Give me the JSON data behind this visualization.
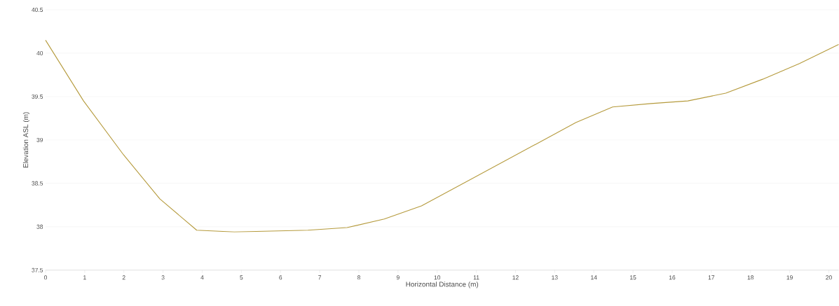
{
  "chart_data": {
    "type": "line",
    "xlabel": "Horizontal Distance (m)",
    "ylabel": "Elevation ASL (m)",
    "x": [
      0,
      0.97,
      1.99,
      2.92,
      3.86,
      4.82,
      6.7,
      7.7,
      8.65,
      9.6,
      13.54,
      14.48,
      15.46,
      16.4,
      17.37,
      18.31,
      19.25,
      20.25
    ],
    "values": [
      40.15,
      39.45,
      38.83,
      38.32,
      37.96,
      37.94,
      37.96,
      37.99,
      38.09,
      38.24,
      39.2,
      39.38,
      39.42,
      39.45,
      39.54,
      39.7,
      39.88,
      40.1
    ],
    "color": "#b59a3c",
    "xlim": [
      0,
      20.25
    ],
    "ylim": [
      37.5,
      40.5
    ],
    "xticks": [
      0,
      1,
      2,
      3,
      4,
      5,
      6,
      7,
      8,
      9,
      10,
      11,
      12,
      13,
      14,
      15,
      16,
      17,
      18,
      19,
      20
    ],
    "yticks": [
      37.5,
      38,
      38.5,
      39,
      39.5,
      40,
      40.5
    ],
    "grid": "y",
    "marker": "none",
    "line_style": "solid"
  }
}
